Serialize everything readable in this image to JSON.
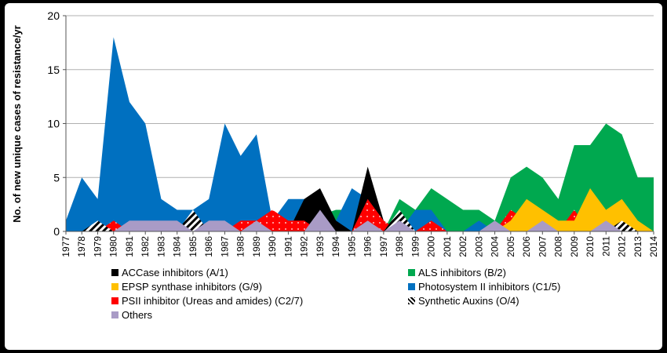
{
  "chart_data": {
    "type": "area",
    "title": "",
    "xlabel": "",
    "ylabel": "No. of new unique cases of resistance/yr",
    "ylim": [
      0,
      20
    ],
    "yticks": [
      0,
      5,
      10,
      15,
      20
    ],
    "grid": true,
    "legend_position": "bottom",
    "x": [
      1977,
      1978,
      1979,
      1980,
      1981,
      1982,
      1983,
      1984,
      1985,
      1986,
      1987,
      1988,
      1989,
      1990,
      1991,
      1992,
      1993,
      1994,
      1995,
      1996,
      1997,
      1998,
      1999,
      2000,
      2001,
      2002,
      2003,
      2004,
      2005,
      2006,
      2007,
      2008,
      2009,
      2010,
      2011,
      2012,
      2013,
      2014
    ],
    "series": [
      {
        "name": "ALS inhibitors (B/2)",
        "color": "#00a84f",
        "values": [
          0,
          0,
          0,
          0,
          0,
          0,
          0,
          0,
          0,
          0,
          0,
          0,
          0,
          0,
          0,
          0,
          1.5,
          2,
          2,
          0,
          0,
          3,
          2,
          4,
          3,
          2,
          2,
          1,
          5,
          6,
          5,
          3,
          8,
          8,
          10,
          9,
          5,
          5
        ]
      },
      {
        "name": "Photosystem II inhibitors (C1/5)",
        "color": "#0070c0",
        "values": [
          1,
          5,
          3,
          18,
          12,
          10,
          3,
          2,
          2,
          3,
          10,
          7,
          9,
          1,
          3,
          3,
          2,
          1,
          4,
          3,
          0,
          0,
          2,
          2,
          0,
          0,
          1,
          0,
          0,
          0,
          0,
          0,
          0,
          0,
          0,
          0,
          0,
          0
        ]
      },
      {
        "name": "ACCase inhibitors (A/1)",
        "color": "#000000",
        "values": [
          0,
          0,
          0,
          0,
          0,
          0,
          0,
          0,
          0,
          0,
          0,
          0,
          0,
          0,
          0,
          3,
          4,
          1,
          0,
          6,
          1,
          0,
          0,
          0,
          0,
          0,
          0,
          0,
          0,
          0,
          0,
          0,
          0,
          0,
          0,
          0,
          0,
          0
        ]
      },
      {
        "name": "PSII inhibitor (Ureas and amides) (C2/7)",
        "color": "#ff0000",
        "values": [
          0,
          0,
          0,
          1,
          0,
          0,
          0,
          0,
          0,
          0,
          0,
          1,
          1,
          2,
          1,
          1,
          0,
          0,
          0,
          3,
          1,
          0,
          0,
          1,
          0,
          0,
          0,
          0,
          2,
          1,
          1,
          0,
          2,
          0,
          0,
          0,
          0,
          0
        ]
      },
      {
        "name": "EPSP synthase inhibitors (G/9)",
        "color": "#ffc000",
        "values": [
          0,
          0,
          0,
          0,
          0,
          0,
          0,
          0,
          0,
          0,
          0,
          0,
          0,
          0,
          0,
          0,
          0,
          0,
          0,
          0,
          0,
          0,
          0,
          0,
          0,
          0,
          0,
          0,
          1,
          3,
          2,
          1,
          1,
          4,
          2,
          3,
          1,
          0
        ]
      },
      {
        "name": "Synthetic Auxins (O/4)",
        "color": "#000000",
        "values": [
          0,
          0,
          1,
          0,
          0,
          0,
          0,
          0,
          2,
          0,
          0,
          0,
          0,
          0,
          0,
          0,
          0,
          0,
          0,
          0,
          0,
          2,
          0,
          0,
          0,
          0,
          0,
          0,
          0,
          0,
          0,
          0,
          0,
          0,
          0,
          1,
          0,
          0
        ]
      },
      {
        "name": "Others",
        "color": "#a99bc6",
        "values": [
          0,
          0,
          0,
          0,
          1,
          1,
          1,
          1,
          0,
          1,
          1,
          0,
          1,
          0,
          0,
          0,
          2,
          0,
          0,
          1,
          0,
          1,
          0,
          0,
          0,
          0,
          0,
          1,
          0,
          0,
          1,
          0,
          0,
          0,
          1,
          0,
          0,
          0
        ]
      }
    ],
    "legend": [
      {
        "label": "ACCase inhibitors (A/1)",
        "color": "#000000"
      },
      {
        "label": "ALS inhibitors (B/2)",
        "color": "#00a84f"
      },
      {
        "label": "EPSP synthase inhibitors (G/9)",
        "color": "#ffc000"
      },
      {
        "label": "Photosystem II inhibitors (C1/5)",
        "color": "#0070c0"
      },
      {
        "label": "PSII inhibitor (Ureas and amides) (C2/7)",
        "color": "#ff0000"
      },
      {
        "label": "Synthetic Auxins (O/4)",
        "color": "#000000"
      },
      {
        "label": "Others",
        "color": "#a99bc6"
      }
    ]
  }
}
